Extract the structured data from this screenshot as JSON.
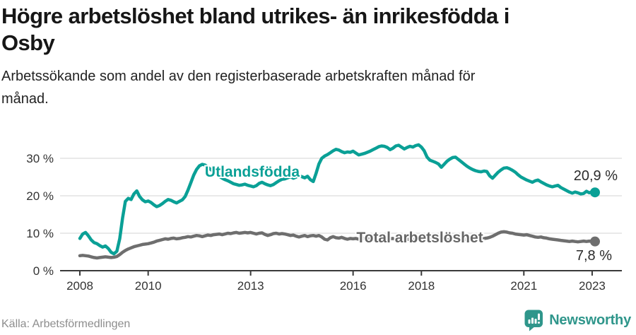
{
  "header": {
    "title_lines": [
      "Högre arbetslöshet bland utrikes- än inrikesfödda i",
      "Osby"
    ],
    "subtitle_lines": [
      "Arbetssökande som andel av den registerbaserade arbetskraften månad för",
      "månad."
    ]
  },
  "footer": {
    "source": "Källa: Arbetsförmedlingen",
    "brand": "Newsworthy"
  },
  "colors": {
    "foreign_born_line": "#0aa096",
    "total_line": "#6e6e6e",
    "total_label": "#666666",
    "annotation": "#2b2b2b",
    "brand_teal": "#2f968b",
    "grid": "#dcdcdc",
    "axis": "#3a3a3a"
  },
  "chart_data": {
    "type": "line",
    "title": "Högre arbetslöshet bland utrikes- än inrikesfödda i Osby",
    "subtitle": "Arbetssökande som andel av den registerbaserade arbetskraften månad för månad.",
    "x_unit": "month",
    "x_start_year": 2008,
    "x_end": "2023-02",
    "xlim": [
      2008,
      2023.25
    ],
    "ylim": [
      0,
      36
    ],
    "grid": true,
    "x_tick_years": [
      2008,
      2010,
      2013,
      2016,
      2018,
      2021,
      2023
    ],
    "x_tick_labels": [
      "2008",
      "2010",
      "2013",
      "2016",
      "2018",
      "2021",
      "2023"
    ],
    "y_tick_values": [
      0,
      10,
      20,
      30
    ],
    "y_tick_labels": [
      "0 %",
      "10 %",
      "20 %",
      "30 %"
    ],
    "series": [
      {
        "name": "Utlandsfödda",
        "color": "#0aa096",
        "end_label": "20,9 %",
        "end_value": 20.9,
        "values": [
          8.6,
          9.8,
          10.2,
          9.3,
          8.2,
          7.5,
          7.2,
          6.7,
          6.3,
          6.6,
          5.9,
          4.9,
          4.5,
          5.2,
          8.5,
          14.0,
          18.5,
          19.3,
          19.0,
          20.5,
          21.3,
          19.8,
          18.9,
          18.4,
          18.6,
          18.2,
          17.6,
          17.1,
          17.4,
          17.9,
          18.5,
          19.0,
          18.8,
          18.4,
          18.1,
          18.5,
          18.9,
          19.8,
          21.5,
          23.5,
          25.5,
          27.0,
          28.0,
          28.4,
          28.2,
          27.6,
          27.0,
          26.4,
          25.8,
          25.2,
          24.7,
          24.3,
          24.0,
          23.6,
          23.2,
          23.0,
          22.8,
          22.9,
          23.1,
          22.8,
          22.6,
          22.4,
          22.7,
          23.3,
          23.6,
          23.2,
          22.9,
          22.7,
          23.0,
          23.5,
          24.0,
          24.4,
          24.5,
          24.8,
          25.1,
          24.7,
          25.0,
          25.4,
          25.1,
          24.8,
          25.2,
          24.3,
          23.8,
          26.0,
          28.5,
          30.0,
          30.6,
          31.0,
          31.5,
          32.0,
          32.4,
          32.2,
          31.8,
          31.5,
          31.7,
          31.6,
          31.9,
          31.4,
          30.9,
          31.1,
          31.3,
          31.6,
          31.9,
          32.3,
          32.7,
          33.1,
          33.3,
          33.2,
          32.9,
          32.3,
          32.7,
          33.3,
          33.5,
          33.0,
          32.5,
          32.9,
          33.2,
          33.0,
          33.4,
          33.6,
          33.0,
          32.0,
          30.3,
          29.5,
          29.2,
          28.9,
          28.5,
          27.6,
          28.4,
          29.2,
          29.8,
          30.2,
          30.3,
          29.7,
          29.1,
          28.5,
          27.9,
          27.4,
          27.0,
          26.7,
          26.5,
          26.4,
          26.6,
          26.5,
          25.3,
          24.7,
          25.5,
          26.3,
          26.9,
          27.4,
          27.5,
          27.2,
          26.8,
          26.3,
          25.6,
          25.0,
          24.6,
          24.2,
          23.9,
          23.6,
          24.0,
          24.2,
          23.7,
          23.3,
          22.9,
          22.6,
          22.4,
          22.6,
          22.8,
          22.2,
          21.8,
          21.4,
          21.0,
          20.7,
          21.0,
          20.8,
          20.5,
          20.6,
          21.2,
          20.8,
          21.1,
          20.9
        ]
      },
      {
        "name": "Total arbetslöshet",
        "color": "#6e6e6e",
        "end_label": "7,8 %",
        "end_value": 7.8,
        "values": [
          4.0,
          4.1,
          4.0,
          3.9,
          3.7,
          3.5,
          3.4,
          3.5,
          3.6,
          3.7,
          3.6,
          3.5,
          3.6,
          3.8,
          4.3,
          4.9,
          5.4,
          5.8,
          6.1,
          6.4,
          6.6,
          6.8,
          7.0,
          7.1,
          7.2,
          7.4,
          7.6,
          7.9,
          8.1,
          8.3,
          8.5,
          8.4,
          8.6,
          8.7,
          8.5,
          8.6,
          8.8,
          8.9,
          9.1,
          9.0,
          9.2,
          9.4,
          9.3,
          9.1,
          9.3,
          9.5,
          9.4,
          9.6,
          9.7,
          9.8,
          9.6,
          9.8,
          10.0,
          9.9,
          10.1,
          10.2,
          10.0,
          10.1,
          10.2,
          10.1,
          10.2,
          10.0,
          9.8,
          10.0,
          10.1,
          9.7,
          9.4,
          9.6,
          9.9,
          10.0,
          9.8,
          9.9,
          9.8,
          9.6,
          9.4,
          9.5,
          9.2,
          9.0,
          9.2,
          9.4,
          9.1,
          9.3,
          9.4,
          9.2,
          9.4,
          9.0,
          8.4,
          8.2,
          8.8,
          9.1,
          8.8,
          8.7,
          8.9,
          8.6,
          8.4,
          8.6,
          8.5,
          8.6,
          8.4,
          8.5,
          8.7,
          8.6,
          8.4,
          8.5,
          8.6,
          8.5,
          8.4,
          8.5,
          8.4,
          8.5,
          8.6,
          8.4,
          8.3,
          8.4,
          8.5,
          8.4,
          8.3,
          8.2,
          8.3,
          8.4,
          8.3,
          8.4,
          8.2,
          8.3,
          8.4,
          8.3,
          8.2,
          8.1,
          8.2,
          8.3,
          8.2,
          8.3,
          8.2,
          8.3,
          8.4,
          8.3,
          8.4,
          8.5,
          8.4,
          8.5,
          8.6,
          8.5,
          8.6,
          8.7,
          8.9,
          9.2,
          9.6,
          10.0,
          10.3,
          10.4,
          10.3,
          10.1,
          10.0,
          9.8,
          9.7,
          9.6,
          9.5,
          9.6,
          9.4,
          9.2,
          9.0,
          8.9,
          9.0,
          8.8,
          8.7,
          8.5,
          8.4,
          8.3,
          8.2,
          8.1,
          8.0,
          7.9,
          7.8,
          7.9,
          7.8,
          7.7,
          7.8,
          7.9,
          7.8,
          7.9,
          7.8,
          7.8
        ]
      }
    ],
    "legend_position": "inline-labels"
  }
}
